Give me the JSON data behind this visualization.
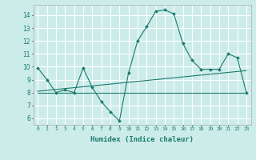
{
  "xlabel": "Humidex (Indice chaleur)",
  "background_color": "#ccecea",
  "grid_color": "#ffffff",
  "line_color": "#1a7a6e",
  "xlim": [
    -0.5,
    23.5
  ],
  "ylim": [
    5.5,
    14.8
  ],
  "yticks": [
    6,
    7,
    8,
    9,
    10,
    11,
    12,
    13,
    14
  ],
  "xtick_labels": [
    "0",
    "1",
    "2",
    "3",
    "4",
    "5",
    "6",
    "7",
    "8",
    "9",
    "10",
    "11",
    "12",
    "13",
    "14",
    "15",
    "16",
    "17",
    "18",
    "19",
    "20",
    "21",
    "22",
    "23"
  ],
  "line1_x": [
    0,
    1,
    2,
    3,
    4,
    5,
    6,
    7,
    8,
    9,
    10,
    11,
    12,
    13,
    14,
    15,
    16,
    17,
    18,
    19,
    20,
    21,
    22,
    23
  ],
  "line1_y": [
    9.9,
    9.0,
    8.0,
    8.2,
    8.0,
    9.9,
    8.4,
    7.3,
    6.5,
    5.8,
    9.5,
    12.0,
    13.1,
    14.3,
    14.4,
    14.1,
    11.8,
    10.5,
    9.8,
    9.8,
    9.8,
    11.0,
    10.7,
    8.0
  ],
  "line2_x": [
    0,
    1,
    2,
    3,
    4,
    5,
    6,
    7,
    8,
    9,
    10,
    11,
    12,
    13,
    14,
    15,
    16,
    17,
    18,
    19,
    20,
    21,
    22,
    23
  ],
  "line2_y": [
    8.0,
    8.0,
    8.0,
    8.0,
    8.0,
    8.0,
    8.0,
    8.0,
    8.0,
    8.0,
    8.0,
    8.0,
    8.0,
    8.0,
    8.0,
    8.0,
    8.0,
    8.0,
    8.0,
    8.0,
    8.0,
    8.0,
    8.0,
    8.0
  ],
  "line3_x": [
    0,
    23
  ],
  "line3_y": [
    8.1,
    9.7
  ]
}
